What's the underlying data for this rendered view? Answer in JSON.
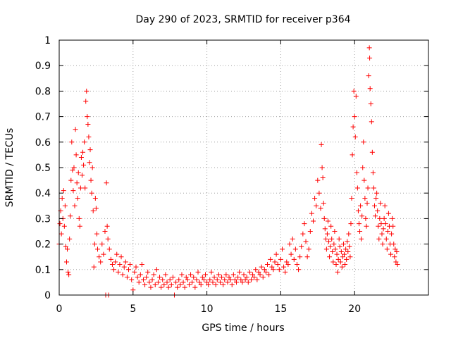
{
  "chart_data": {
    "type": "scatter",
    "title": "Day 290 of 2023, SRMTID for receiver p364",
    "xlabel": "GPS time / hours",
    "ylabel": "SRMTID / TECUs",
    "xlim": [
      0,
      25
    ],
    "ylim": [
      0,
      1
    ],
    "xticks": [
      0,
      5,
      10,
      15,
      20
    ],
    "xtick_labels": [
      "0",
      "5",
      "10",
      "15",
      "20"
    ],
    "yticks": [
      0,
      0.1,
      0.2,
      0.3,
      0.4,
      0.5,
      0.6,
      0.7,
      0.8,
      0.9,
      1
    ],
    "ytick_labels": [
      "0",
      "0.1",
      "0.2",
      "0.3",
      "0.4",
      "0.5",
      "0.6",
      "0.7",
      "0.8",
      "0.9",
      "1"
    ],
    "grid": true,
    "marker": "+",
    "color": "#ff0000",
    "series": [
      {
        "name": "SRMTID",
        "points": [
          [
            0.0,
            0.2
          ],
          [
            0.05,
            0.28
          ],
          [
            0.1,
            0.33
          ],
          [
            0.15,
            0.24
          ],
          [
            0.2,
            0.38
          ],
          [
            0.25,
            0.3
          ],
          [
            0.3,
            0.41
          ],
          [
            0.35,
            0.27
          ],
          [
            0.4,
            0.35
          ],
          [
            0.45,
            0.19
          ],
          [
            0.5,
            0.13
          ],
          [
            0.55,
            0.18
          ],
          [
            0.6,
            0.09
          ],
          [
            0.65,
            0.08
          ],
          [
            0.7,
            0.22
          ],
          [
            0.75,
            0.31
          ],
          [
            0.8,
            0.45
          ],
          [
            0.85,
            0.6
          ],
          [
            0.9,
            0.49
          ],
          [
            0.95,
            0.41
          ],
          [
            1.0,
            0.5
          ],
          [
            1.05,
            0.35
          ],
          [
            1.1,
            0.65
          ],
          [
            1.15,
            0.55
          ],
          [
            1.2,
            0.44
          ],
          [
            1.25,
            0.38
          ],
          [
            1.3,
            0.48
          ],
          [
            1.35,
            0.3
          ],
          [
            1.4,
            0.27
          ],
          [
            1.45,
            0.42
          ],
          [
            1.5,
            0.54
          ],
          [
            1.55,
            0.47
          ],
          [
            1.6,
            0.56
          ],
          [
            1.65,
            0.51
          ],
          [
            1.7,
            0.6
          ],
          [
            1.75,
            0.42
          ],
          [
            1.8,
            0.76
          ],
          [
            1.85,
            0.8
          ],
          [
            1.9,
            0.7
          ],
          [
            1.95,
            0.67
          ],
          [
            2.0,
            0.62
          ],
          [
            2.05,
            0.52
          ],
          [
            2.1,
            0.57
          ],
          [
            2.15,
            0.45
          ],
          [
            2.2,
            0.4
          ],
          [
            2.25,
            0.5
          ],
          [
            2.3,
            0.33
          ],
          [
            2.35,
            0.11
          ],
          [
            2.4,
            0.2
          ],
          [
            2.45,
            0.38
          ],
          [
            2.5,
            0.34
          ],
          [
            2.55,
            0.24
          ],
          [
            2.6,
            0.18
          ],
          [
            2.7,
            0.15
          ],
          [
            2.8,
            0.13
          ],
          [
            2.9,
            0.2
          ],
          [
            3.0,
            0.16
          ],
          [
            3.1,
            0.25
          ],
          [
            3.15,
            0.0
          ],
          [
            3.2,
            0.44
          ],
          [
            3.25,
            0.27
          ],
          [
            3.3,
            0.22
          ],
          [
            3.35,
            0.0
          ],
          [
            3.4,
            0.18
          ],
          [
            3.5,
            0.14
          ],
          [
            3.6,
            0.12
          ],
          [
            3.7,
            0.1
          ],
          [
            3.8,
            0.13
          ],
          [
            3.9,
            0.16
          ],
          [
            4.0,
            0.09
          ],
          [
            4.1,
            0.12
          ],
          [
            4.2,
            0.15
          ],
          [
            4.3,
            0.08
          ],
          [
            4.4,
            0.11
          ],
          [
            4.5,
            0.13
          ],
          [
            4.6,
            0.07
          ],
          [
            4.7,
            0.1
          ],
          [
            4.8,
            0.12
          ],
          [
            4.9,
            0.06
          ],
          [
            5.0,
            0.02
          ],
          [
            5.1,
            0.09
          ],
          [
            5.2,
            0.11
          ],
          [
            5.3,
            0.07
          ],
          [
            5.4,
            0.05
          ],
          [
            5.5,
            0.08
          ],
          [
            5.6,
            0.12
          ],
          [
            5.7,
            0.06
          ],
          [
            5.8,
            0.04
          ],
          [
            5.9,
            0.07
          ],
          [
            6.0,
            0.09
          ],
          [
            6.1,
            0.05
          ],
          [
            6.2,
            0.03
          ],
          [
            6.3,
            0.06
          ],
          [
            6.4,
            0.08
          ],
          [
            6.5,
            0.04
          ],
          [
            6.6,
            0.1
          ],
          [
            6.7,
            0.05
          ],
          [
            6.8,
            0.07
          ],
          [
            6.9,
            0.03
          ],
          [
            7.0,
            0.06
          ],
          [
            7.1,
            0.04
          ],
          [
            7.2,
            0.08
          ],
          [
            7.3,
            0.05
          ],
          [
            7.4,
            0.03
          ],
          [
            7.5,
            0.06
          ],
          [
            7.6,
            0.04
          ],
          [
            7.7,
            0.07
          ],
          [
            7.8,
            0.0
          ],
          [
            7.9,
            0.05
          ],
          [
            8.0,
            0.03
          ],
          [
            8.1,
            0.06
          ],
          [
            8.2,
            0.04
          ],
          [
            8.3,
            0.08
          ],
          [
            8.4,
            0.05
          ],
          [
            8.5,
            0.03
          ],
          [
            8.6,
            0.07
          ],
          [
            8.7,
            0.06
          ],
          [
            8.8,
            0.04
          ],
          [
            8.9,
            0.08
          ],
          [
            9.0,
            0.05
          ],
          [
            9.1,
            0.07
          ],
          [
            9.2,
            0.03
          ],
          [
            9.3,
            0.06
          ],
          [
            9.4,
            0.09
          ],
          [
            9.5,
            0.05
          ],
          [
            9.6,
            0.04
          ],
          [
            9.7,
            0.07
          ],
          [
            9.8,
            0.06
          ],
          [
            9.9,
            0.08
          ],
          [
            10.0,
            0.05
          ],
          [
            10.1,
            0.04
          ],
          [
            10.2,
            0.06
          ],
          [
            10.3,
            0.09
          ],
          [
            10.4,
            0.05
          ],
          [
            10.5,
            0.07
          ],
          [
            10.6,
            0.04
          ],
          [
            10.7,
            0.06
          ],
          [
            10.8,
            0.08
          ],
          [
            10.9,
            0.05
          ],
          [
            11.0,
            0.07
          ],
          [
            11.1,
            0.04
          ],
          [
            11.2,
            0.06
          ],
          [
            11.3,
            0.08
          ],
          [
            11.4,
            0.05
          ],
          [
            11.5,
            0.07
          ],
          [
            11.6,
            0.06
          ],
          [
            11.7,
            0.04
          ],
          [
            11.8,
            0.08
          ],
          [
            11.9,
            0.06
          ],
          [
            12.0,
            0.05
          ],
          [
            12.1,
            0.07
          ],
          [
            12.2,
            0.09
          ],
          [
            12.3,
            0.06
          ],
          [
            12.4,
            0.05
          ],
          [
            12.5,
            0.08
          ],
          [
            12.6,
            0.06
          ],
          [
            12.7,
            0.07
          ],
          [
            12.8,
            0.05
          ],
          [
            12.9,
            0.09
          ],
          [
            13.0,
            0.06
          ],
          [
            13.1,
            0.08
          ],
          [
            13.2,
            0.07
          ],
          [
            13.3,
            0.1
          ],
          [
            13.4,
            0.06
          ],
          [
            13.5,
            0.09
          ],
          [
            13.6,
            0.08
          ],
          [
            13.7,
            0.11
          ],
          [
            13.8,
            0.07
          ],
          [
            13.9,
            0.1
          ],
          [
            14.0,
            0.09
          ],
          [
            14.1,
            0.12
          ],
          [
            14.2,
            0.08
          ],
          [
            14.3,
            0.14
          ],
          [
            14.4,
            0.11
          ],
          [
            14.5,
            0.1
          ],
          [
            14.6,
            0.13
          ],
          [
            14.7,
            0.16
          ],
          [
            14.8,
            0.12
          ],
          [
            14.9,
            0.1
          ],
          [
            15.0,
            0.14
          ],
          [
            15.1,
            0.18
          ],
          [
            15.2,
            0.11
          ],
          [
            15.3,
            0.09
          ],
          [
            15.4,
            0.13
          ],
          [
            15.5,
            0.12
          ],
          [
            15.6,
            0.2
          ],
          [
            15.7,
            0.16
          ],
          [
            15.8,
            0.22
          ],
          [
            15.9,
            0.14
          ],
          [
            16.0,
            0.18
          ],
          [
            16.1,
            0.12
          ],
          [
            16.2,
            0.1
          ],
          [
            16.3,
            0.15
          ],
          [
            16.4,
            0.19
          ],
          [
            16.5,
            0.24
          ],
          [
            16.6,
            0.28
          ],
          [
            16.7,
            0.21
          ],
          [
            16.8,
            0.15
          ],
          [
            16.9,
            0.18
          ],
          [
            17.0,
            0.25
          ],
          [
            17.1,
            0.32
          ],
          [
            17.2,
            0.29
          ],
          [
            17.3,
            0.38
          ],
          [
            17.4,
            0.35
          ],
          [
            17.5,
            0.45
          ],
          [
            17.6,
            0.4
          ],
          [
            17.7,
            0.34
          ],
          [
            17.75,
            0.59
          ],
          [
            17.8,
            0.5
          ],
          [
            17.85,
            0.46
          ],
          [
            17.9,
            0.36
          ],
          [
            17.95,
            0.3
          ],
          [
            18.0,
            0.26
          ],
          [
            18.05,
            0.22
          ],
          [
            18.1,
            0.18
          ],
          [
            18.15,
            0.24
          ],
          [
            18.2,
            0.29
          ],
          [
            18.25,
            0.21
          ],
          [
            18.3,
            0.15
          ],
          [
            18.35,
            0.19
          ],
          [
            18.4,
            0.27
          ],
          [
            18.45,
            0.22
          ],
          [
            18.5,
            0.17
          ],
          [
            18.55,
            0.13
          ],
          [
            18.6,
            0.2
          ],
          [
            18.65,
            0.25
          ],
          [
            18.7,
            0.18
          ],
          [
            18.75,
            0.12
          ],
          [
            18.8,
            0.16
          ],
          [
            18.85,
            0.09
          ],
          [
            18.9,
            0.14
          ],
          [
            18.95,
            0.22
          ],
          [
            19.0,
            0.19
          ],
          [
            19.05,
            0.13
          ],
          [
            19.1,
            0.17
          ],
          [
            19.15,
            0.11
          ],
          [
            19.2,
            0.15
          ],
          [
            19.25,
            0.2
          ],
          [
            19.3,
            0.16
          ],
          [
            19.35,
            0.12
          ],
          [
            19.4,
            0.18
          ],
          [
            19.45,
            0.14
          ],
          [
            19.5,
            0.21
          ],
          [
            19.55,
            0.17
          ],
          [
            19.6,
            0.24
          ],
          [
            19.65,
            0.19
          ],
          [
            19.7,
            0.15
          ],
          [
            19.75,
            0.28
          ],
          [
            19.8,
            0.38
          ],
          [
            19.85,
            0.55
          ],
          [
            19.9,
            0.66
          ],
          [
            19.95,
            0.8
          ],
          [
            20.0,
            0.7
          ],
          [
            20.05,
            0.62
          ],
          [
            20.1,
            0.78
          ],
          [
            20.15,
            0.48
          ],
          [
            20.2,
            0.42
          ],
          [
            20.25,
            0.33
          ],
          [
            20.3,
            0.28
          ],
          [
            20.35,
            0.25
          ],
          [
            20.4,
            0.35
          ],
          [
            20.45,
            0.22
          ],
          [
            20.5,
            0.31
          ],
          [
            20.55,
            0.5
          ],
          [
            20.6,
            0.6
          ],
          [
            20.65,
            0.45
          ],
          [
            20.7,
            0.38
          ],
          [
            20.75,
            0.3
          ],
          [
            20.8,
            0.27
          ],
          [
            20.85,
            0.36
          ],
          [
            20.9,
            0.42
          ],
          [
            20.95,
            0.86
          ],
          [
            21.0,
            0.97
          ],
          [
            21.02,
            0.93
          ],
          [
            21.05,
            0.81
          ],
          [
            21.1,
            0.75
          ],
          [
            21.15,
            0.68
          ],
          [
            21.2,
            0.56
          ],
          [
            21.25,
            0.48
          ],
          [
            21.3,
            0.42
          ],
          [
            21.35,
            0.35
          ],
          [
            21.4,
            0.31
          ],
          [
            21.45,
            0.38
          ],
          [
            21.5,
            0.4
          ],
          [
            21.55,
            0.33
          ],
          [
            21.6,
            0.27
          ],
          [
            21.65,
            0.22
          ],
          [
            21.7,
            0.3
          ],
          [
            21.75,
            0.36
          ],
          [
            21.8,
            0.28
          ],
          [
            21.85,
            0.24
          ],
          [
            21.9,
            0.2
          ],
          [
            21.95,
            0.26
          ],
          [
            22.0,
            0.3
          ],
          [
            22.05,
            0.35
          ],
          [
            22.1,
            0.28
          ],
          [
            22.15,
            0.22
          ],
          [
            22.2,
            0.18
          ],
          [
            22.25,
            0.25
          ],
          [
            22.3,
            0.32
          ],
          [
            22.35,
            0.27
          ],
          [
            22.4,
            0.2
          ],
          [
            22.45,
            0.16
          ],
          [
            22.5,
            0.24
          ],
          [
            22.55,
            0.3
          ],
          [
            22.6,
            0.27
          ],
          [
            22.65,
            0.2
          ],
          [
            22.7,
            0.15
          ],
          [
            22.75,
            0.18
          ],
          [
            22.8,
            0.13
          ],
          [
            22.85,
            0.17
          ],
          [
            22.9,
            0.12
          ]
        ]
      }
    ]
  }
}
